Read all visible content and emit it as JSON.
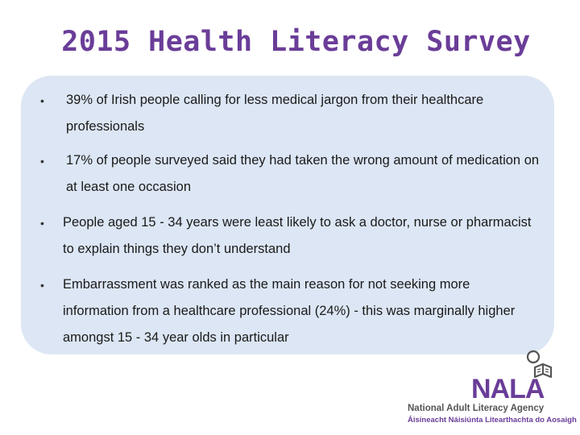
{
  "title": "2015 Health Literacy Survey",
  "bullets": [
    {
      "marker": "•",
      "text": "39% of Irish people calling for less medical jargon from their healthcare professionals"
    },
    {
      "marker": "•",
      "text": "17% of people surveyed said they had taken the wrong amount of medication on at least one occasion"
    },
    {
      "marker": "•",
      "text": "People aged 15 - 34 years were least likely to ask a doctor, nurse or pharmacist to explain things they don’t understand"
    },
    {
      "marker": "•",
      "text": "Embarrassment was ranked as the main reason for not seeking more information from a healthcare professional (24%) - this was marginally higher amongst 15 - 34 year olds in particular"
    }
  ],
  "logo": {
    "name": "NALA",
    "english": "National Adult Literacy Agency",
    "irish": "Áisíneacht Náisiúnta Litearthachta do Aosaigh",
    "icon": "reading-person-icon",
    "accent_color": "#6a3d98"
  },
  "colors": {
    "title": "#6a3d98",
    "panel": "#dce6f4"
  }
}
